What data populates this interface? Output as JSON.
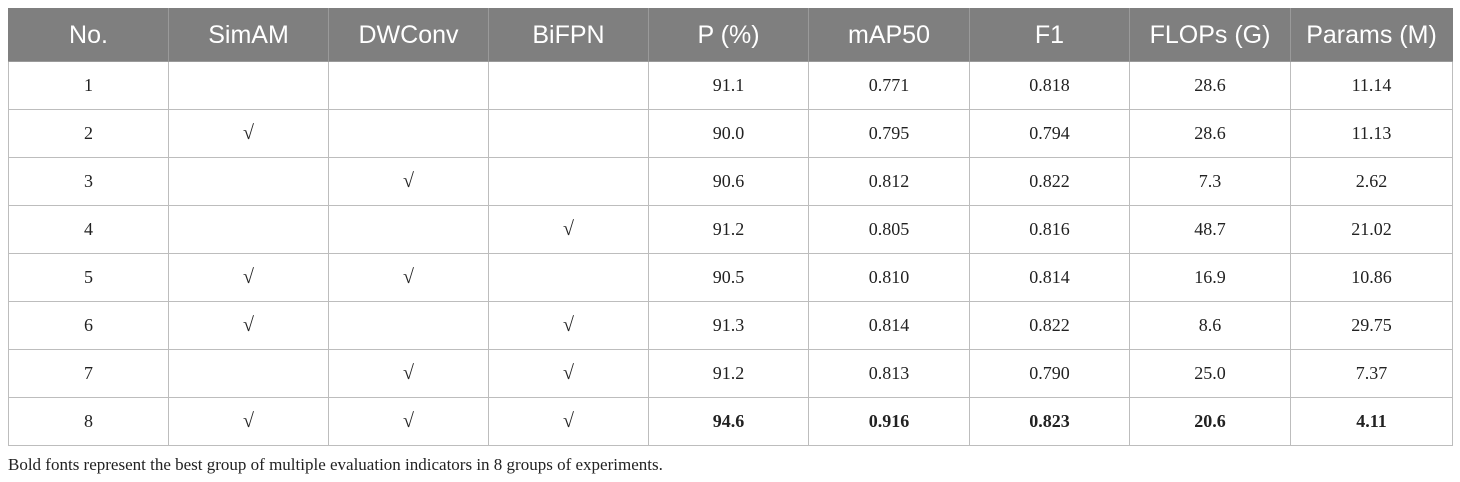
{
  "table": {
    "headers": [
      "No.",
      "SimAM",
      "DWConv",
      "BiFPN",
      "P (%)",
      "mAP50",
      "F1",
      "FLOPs (G)",
      "Params (M)"
    ],
    "rows": [
      [
        "1",
        "",
        "",
        "",
        "91.1",
        "0.771",
        "0.818",
        "28.6",
        "11.14"
      ],
      [
        "2",
        "√",
        "",
        "",
        "90.0",
        "0.795",
        "0.794",
        "28.6",
        "11.13"
      ],
      [
        "3",
        "",
        "√",
        "",
        "90.6",
        "0.812",
        "0.822",
        "7.3",
        "2.62"
      ],
      [
        "4",
        "",
        "",
        "√",
        "91.2",
        "0.805",
        "0.816",
        "48.7",
        "21.02"
      ],
      [
        "5",
        "√",
        "√",
        "",
        "90.5",
        "0.810",
        "0.814",
        "16.9",
        "10.86"
      ],
      [
        "6",
        "√",
        "",
        "√",
        "91.3",
        "0.814",
        "0.822",
        "8.6",
        "29.75"
      ],
      [
        "7",
        "",
        "√",
        "√",
        "91.2",
        "0.813",
        "0.790",
        "25.0",
        "7.37"
      ],
      [
        "8",
        "√",
        "√",
        "√",
        "94.6",
        "0.916",
        "0.823",
        "20.6",
        "4.11"
      ]
    ],
    "bold_row": 7
  },
  "note": "Bold fonts represent the best group of multiple evaluation indicators in 8 groups of experiments."
}
